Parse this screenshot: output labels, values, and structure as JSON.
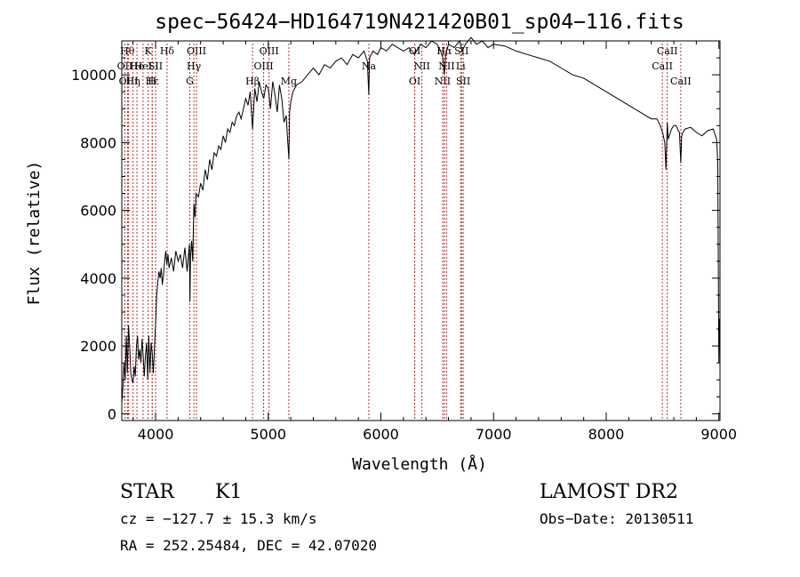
{
  "info": {
    "class_label": "STAR",
    "subclass": "K1",
    "survey": "LAMOST DR2",
    "cz": "cz = −127.7 ± 15.3 km/s",
    "obs_date": "Obs−Date: 20130511",
    "radec": "RA = 252.25484, DEC =  42.07020"
  },
  "chart_data": {
    "type": "line",
    "title": "spec−56424−HD164719N421420B01_sp04−116.fits",
    "xlabel": "Wavelength (Å)",
    "ylabel": "Flux (relative)",
    "xlim": [
      3700,
      9010
    ],
    "ylim": [
      -200,
      11000
    ],
    "xticks": [
      4000,
      5000,
      6000,
      7000,
      8000,
      9000
    ],
    "yticks": [
      0,
      2000,
      4000,
      6000,
      8000,
      10000
    ],
    "grid": false,
    "series": [
      {
        "x": [
          3700,
          3710,
          3720,
          3730,
          3740,
          3750,
          3760,
          3770,
          3780,
          3790,
          3800,
          3810,
          3820,
          3830,
          3840,
          3850,
          3860,
          3870,
          3880,
          3890,
          3900,
          3910,
          3920,
          3930,
          3940,
          3950,
          3960,
          3970,
          3980,
          3990,
          4000,
          4010,
          4020,
          4030,
          4040,
          4050,
          4060,
          4070,
          4080,
          4090,
          4100,
          4110,
          4120,
          4140,
          4160,
          4180,
          4200,
          4220,
          4240,
          4260,
          4280,
          4300,
          4305,
          4310,
          4320,
          4330,
          4340,
          4350,
          4360,
          4380,
          4400,
          4420,
          4440,
          4460,
          4480,
          4500,
          4520,
          4540,
          4560,
          4580,
          4600,
          4620,
          4640,
          4660,
          4680,
          4700,
          4720,
          4740,
          4760,
          4780,
          4800,
          4820,
          4840,
          4861,
          4880,
          4900,
          4920,
          4940,
          4960,
          4980,
          5000,
          5020,
          5040,
          5060,
          5080,
          5100,
          5120,
          5140,
          5160,
          5170,
          5183,
          5190,
          5200,
          5220,
          5250,
          5300,
          5350,
          5400,
          5450,
          5500,
          5550,
          5600,
          5650,
          5700,
          5750,
          5800,
          5850,
          5880,
          5893,
          5900,
          5930,
          5970,
          6000,
          6050,
          6100,
          6150,
          6200,
          6250,
          6300,
          6350,
          6400,
          6450,
          6500,
          6530,
          6550,
          6563,
          6575,
          6600,
          6650,
          6700,
          6720,
          6750,
          6800,
          6850,
          6900,
          6950,
          7000,
          7100,
          7200,
          7300,
          7400,
          7500,
          7600,
          7700,
          7800,
          7900,
          8000,
          8100,
          8200,
          8300,
          8400,
          8450,
          8480,
          8500,
          8520,
          8530,
          8542,
          8550,
          8560,
          8580,
          8600,
          8620,
          8640,
          8650,
          8662,
          8670,
          8680,
          8700,
          8750,
          8800,
          8850,
          8900,
          8950,
          8980,
          8990,
          9000,
          9005
        ],
        "y": [
          300,
          800,
          1500,
          1000,
          2300,
          1200,
          2600,
          2000,
          1200,
          1000,
          900,
          1400,
          1100,
          2000,
          2300,
          1600,
          1900,
          1500,
          2200,
          1700,
          1100,
          1700,
          2100,
          1000,
          2300,
          1200,
          2100,
          1800,
          1200,
          2000,
          2600,
          3500,
          3900,
          4200,
          4000,
          4300,
          3800,
          4100,
          4500,
          4800,
          4400,
          4700,
          4300,
          4600,
          4200,
          4800,
          4500,
          4700,
          4300,
          4900,
          4200,
          5000,
          3300,
          4600,
          5100,
          4500,
          6200,
          5800,
          6500,
          6400,
          6800,
          6600,
          7200,
          6900,
          7500,
          7200,
          7700,
          7600,
          7900,
          7800,
          8200,
          8000,
          8400,
          8300,
          8600,
          8500,
          8800,
          8900,
          8700,
          9000,
          9300,
          9100,
          9500,
          8400,
          9600,
          9200,
          9800,
          9500,
          9300,
          9700,
          9600,
          9000,
          9800,
          9400,
          8900,
          9700,
          9300,
          8600,
          8800,
          8200,
          7500,
          8900,
          9200,
          9500,
          9700,
          9800,
          10000,
          10200,
          10000,
          10300,
          10200,
          10400,
          10500,
          10300,
          10600,
          10500,
          10700,
          10400,
          9400,
          10500,
          10700,
          10600,
          10800,
          10700,
          10900,
          10800,
          10700,
          10800,
          10600,
          10900,
          10800,
          11000,
          10900,
          10700,
          10500,
          10000,
          10600,
          10900,
          10800,
          11000,
          10700,
          10900,
          11100,
          10900,
          11000,
          10800,
          10900,
          10850,
          10700,
          10600,
          10500,
          10400,
          10200,
          10000,
          9900,
          9700,
          9500,
          9300,
          9100,
          8900,
          8700,
          8700,
          8500,
          8300,
          8000,
          7200,
          8600,
          8100,
          8200,
          8400,
          8500,
          8500,
          8350,
          8300,
          7400,
          8200,
          8300,
          8400,
          8450,
          8300,
          8200,
          8350,
          8400,
          8100,
          7400,
          1500,
          2800
        ]
      }
    ],
    "lines": [
      {
        "wl": 3727,
        "label": "OII",
        "row": 2
      },
      {
        "wl": 3750,
        "label": "Hθ",
        "row": 1
      },
      {
        "wl": 3760,
        "label": "OIII",
        "row": 3
      },
      {
        "wl": 3800,
        "label": "Hη",
        "row": 3
      },
      {
        "wl": 3835,
        "label": "He",
        "row": 2
      },
      {
        "wl": 3889,
        "label": "HeI",
        "row": 2
      },
      {
        "wl": 3934,
        "label": "K",
        "row": 1
      },
      {
        "wl": 3970,
        "label": "H",
        "row": 3
      },
      {
        "wl": 3970,
        "label": "Hε",
        "row": 3
      },
      {
        "wl": 4000,
        "label": "SII",
        "row": 2
      },
      {
        "wl": 4102,
        "label": "Hδ",
        "row": 1
      },
      {
        "wl": 4304,
        "label": "G",
        "row": 3
      },
      {
        "wl": 4340,
        "label": "Hγ",
        "row": 2
      },
      {
        "wl": 4363,
        "label": "OIII",
        "row": 1
      },
      {
        "wl": 4861,
        "label": "Hβ",
        "row": 3
      },
      {
        "wl": 4959,
        "label": "OIII",
        "row": 2
      },
      {
        "wl": 5007,
        "label": "OIII",
        "row": 1
      },
      {
        "wl": 5183,
        "label": "Mg",
        "row": 3
      },
      {
        "wl": 5893,
        "label": "Na",
        "row": 2
      },
      {
        "wl": 6300,
        "label": "OI",
        "row": 1
      },
      {
        "wl": 6300,
        "label": "OI",
        "row": 3
      },
      {
        "wl": 6364,
        "label": "NII",
        "row": 2
      },
      {
        "wl": 6548,
        "label": "NII",
        "row": 3
      },
      {
        "wl": 6563,
        "label": "Hα",
        "row": 1
      },
      {
        "wl": 6583,
        "label": "NII",
        "row": 2
      },
      {
        "wl": 6708,
        "label": "Li",
        "row": 2
      },
      {
        "wl": 6716,
        "label": "SII",
        "row": 1
      },
      {
        "wl": 6731,
        "label": "SII",
        "row": 3
      },
      {
        "wl": 8498,
        "label": "CaII",
        "row": 2
      },
      {
        "wl": 8542,
        "label": "CaII",
        "row": 1
      },
      {
        "wl": 8662,
        "label": "CaII",
        "row": 3
      }
    ]
  }
}
